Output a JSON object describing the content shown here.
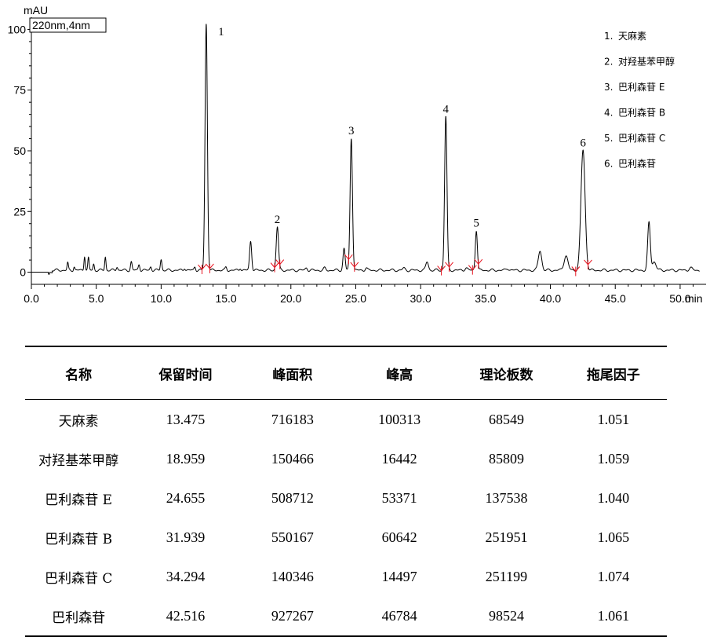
{
  "chart_data": {
    "type": "line",
    "yunit": "mAU",
    "xunit": "min",
    "condition": "220nm,4nm",
    "xlim": [
      0,
      52
    ],
    "ylim": [
      -5,
      105
    ],
    "xticks": [
      0,
      5,
      10,
      15,
      20,
      25,
      30,
      35,
      40,
      45,
      50
    ],
    "xtick_labels": [
      "0.0",
      "5.0",
      "10.0",
      "15.0",
      "20.0",
      "25.0",
      "30.0",
      "35.0",
      "40.0",
      "45.0",
      "50.0"
    ],
    "yticks": [
      0,
      25,
      50,
      75,
      100
    ],
    "ytick_labels": [
      "0",
      "25",
      "50",
      "75",
      "100"
    ],
    "peaks": [
      {
        "label": "1",
        "rt": 13.475,
        "height": 101.5,
        "width": 0.09
      },
      {
        "label": "2",
        "rt": 18.959,
        "height": 18,
        "width": 0.09
      },
      {
        "label": "3",
        "rt": 24.655,
        "height": 54.5,
        "width": 0.09
      },
      {
        "label": "4",
        "rt": 31.939,
        "height": 63.5,
        "width": 0.09
      },
      {
        "label": "5",
        "rt": 34.294,
        "height": 16.5,
        "width": 0.08
      },
      {
        "label": "6",
        "rt": 42.516,
        "height": 49.5,
        "width": 0.16
      }
    ],
    "minor_peaks": [
      {
        "rt": 2.8,
        "height": 3,
        "width": 0.05
      },
      {
        "rt": 3.3,
        "height": 1.5,
        "width": 0.05
      },
      {
        "rt": 4.1,
        "height": 6,
        "width": 0.05
      },
      {
        "rt": 4.4,
        "height": 5,
        "width": 0.05
      },
      {
        "rt": 4.8,
        "height": 2.5,
        "width": 0.05
      },
      {
        "rt": 5.7,
        "height": 5.5,
        "width": 0.05
      },
      {
        "rt": 6.6,
        "height": 1.5,
        "width": 0.06
      },
      {
        "rt": 7.7,
        "height": 3.5,
        "width": 0.06
      },
      {
        "rt": 8.3,
        "height": 2.5,
        "width": 0.06
      },
      {
        "rt": 9.2,
        "height": 1.5,
        "width": 0.06
      },
      {
        "rt": 10.0,
        "height": 4.5,
        "width": 0.06
      },
      {
        "rt": 11.8,
        "height": 1,
        "width": 0.06
      },
      {
        "rt": 12.6,
        "height": 1.5,
        "width": 0.06
      },
      {
        "rt": 15.0,
        "height": 1.2,
        "width": 0.06
      },
      {
        "rt": 16.1,
        "height": 1,
        "width": 0.06
      },
      {
        "rt": 16.9,
        "height": 12,
        "width": 0.08
      },
      {
        "rt": 21.2,
        "height": 1,
        "width": 0.08
      },
      {
        "rt": 22.6,
        "height": 0.8,
        "width": 0.08
      },
      {
        "rt": 24.1,
        "height": 9,
        "width": 0.08
      },
      {
        "rt": 25.8,
        "height": 1,
        "width": 0.08
      },
      {
        "rt": 28.7,
        "height": 0.8,
        "width": 0.1
      },
      {
        "rt": 30.5,
        "height": 3.5,
        "width": 0.1
      },
      {
        "rt": 33.5,
        "height": 1,
        "width": 0.1
      },
      {
        "rt": 36.7,
        "height": 0.8,
        "width": 0.1
      },
      {
        "rt": 39.2,
        "height": 8,
        "width": 0.13
      },
      {
        "rt": 41.2,
        "height": 6,
        "width": 0.15
      },
      {
        "rt": 47.6,
        "height": 19.5,
        "width": 0.1
      },
      {
        "rt": 48.0,
        "height": 3.5,
        "width": 0.15
      },
      {
        "rt": 50.8,
        "height": 1,
        "width": 0.12
      }
    ],
    "baseline_breaks": [
      {
        "rt": 13.15,
        "type": "start"
      },
      {
        "rt": 13.75,
        "type": "end"
      },
      {
        "rt": 18.75,
        "type": "start"
      },
      {
        "rt": 19.15,
        "type": "end"
      },
      {
        "rt": 24.45,
        "type": "start"
      },
      {
        "rt": 24.9,
        "type": "end"
      },
      {
        "rt": 31.6,
        "type": "start"
      },
      {
        "rt": 32.2,
        "type": "end"
      },
      {
        "rt": 34.0,
        "type": "start"
      },
      {
        "rt": 34.45,
        "type": "end"
      },
      {
        "rt": 41.95,
        "type": "start"
      },
      {
        "rt": 42.9,
        "type": "end"
      }
    ],
    "legend": [
      {
        "num": "1.",
        "name": "天麻素"
      },
      {
        "num": "2.",
        "name": "对羟基苯甲醇"
      },
      {
        "num": "3.",
        "name": "巴利森苷 E"
      },
      {
        "num": "4.",
        "name": "巴利森苷 B"
      },
      {
        "num": "5.",
        "name": "巴利森苷 C"
      },
      {
        "num": "6.",
        "name": "巴利森苷"
      }
    ]
  },
  "table": {
    "headers": [
      "名称",
      "保留时间",
      "峰面积",
      "峰高",
      "理论板数",
      "拖尾因子"
    ],
    "rows": [
      [
        "天麻素",
        "13.475",
        "716183",
        "100313",
        "68549",
        "1.051"
      ],
      [
        "对羟基苯甲醇",
        "18.959",
        "150466",
        "16442",
        "85809",
        "1.059"
      ],
      [
        "巴利森苷 E",
        "24.655",
        "508712",
        "53371",
        "137538",
        "1.040"
      ],
      [
        "巴利森苷 B",
        "31.939",
        "550167",
        "60642",
        "251951",
        "1.065"
      ],
      [
        "巴利森苷 C",
        "34.294",
        "140346",
        "14497",
        "251199",
        "1.074"
      ],
      [
        "巴利森苷",
        "42.516",
        "927267",
        "46784",
        "98524",
        "1.061"
      ]
    ]
  }
}
